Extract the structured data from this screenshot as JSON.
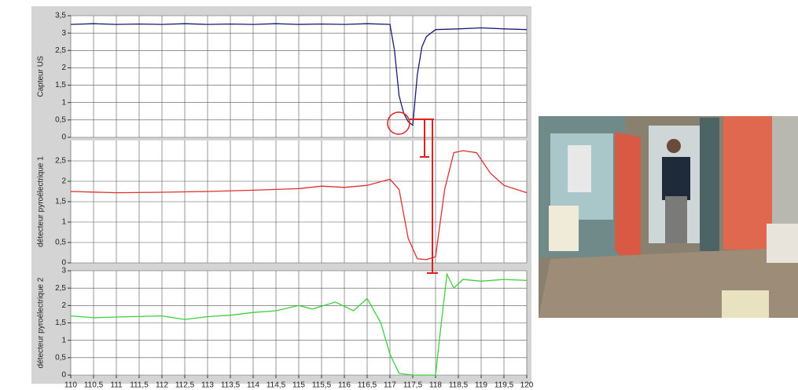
{
  "chart_data": [
    {
      "type": "line",
      "ylabel": "Capteur US",
      "x": [
        110,
        110.5,
        111,
        111.5,
        112,
        112.5,
        113,
        113.5,
        114,
        114.5,
        115,
        115.5,
        116,
        116.5,
        117,
        117.1,
        117.2,
        117.3,
        117.4,
        117.5,
        117.6,
        117.7,
        117.8,
        118,
        118.5,
        119,
        119.5,
        120
      ],
      "series": [
        {
          "color": "#1a1a78",
          "values": [
            3.25,
            3.27,
            3.25,
            3.26,
            3.25,
            3.27,
            3.25,
            3.26,
            3.25,
            3.27,
            3.25,
            3.26,
            3.25,
            3.27,
            3.25,
            2.5,
            1.2,
            0.7,
            0.45,
            0.35,
            1.8,
            2.6,
            2.9,
            3.1,
            3.12,
            3.15,
            3.12,
            3.1
          ]
        }
      ],
      "xlim": [
        110,
        120
      ],
      "ylim": [
        0,
        3.5
      ],
      "yticks": [
        0,
        {
          "value": 0.5,
          "label": "0,5"
        },
        1,
        {
          "value": 1.5,
          "label": "1,5"
        },
        2,
        {
          "value": 2.5,
          "label": "2,5"
        },
        3,
        {
          "value": 3.5,
          "label": "3,5"
        }
      ],
      "grid": true
    },
    {
      "type": "line",
      "ylabel": "détecteur pyroélectrique 1",
      "x": [
        110,
        111,
        112,
        113,
        114,
        114.5,
        115,
        115.5,
        116,
        116.5,
        117,
        117.2,
        117.4,
        117.6,
        117.8,
        118,
        118.2,
        118.4,
        118.6,
        118.9,
        119.2,
        119.5,
        120
      ],
      "series": [
        {
          "color": "#e03030",
          "values": [
            1.75,
            1.72,
            1.73,
            1.75,
            1.78,
            1.8,
            1.82,
            1.88,
            1.85,
            1.9,
            2.05,
            1.8,
            0.6,
            0.1,
            0.08,
            0.15,
            1.8,
            2.7,
            2.75,
            2.7,
            2.2,
            1.9,
            1.72
          ]
        }
      ],
      "xlim": [
        110,
        120
      ],
      "ylim": [
        0,
        3
      ],
      "yticks": [
        0,
        {
          "value": 0.5,
          "label": "0,5"
        },
        1,
        {
          "value": 1.5,
          "label": "1,5"
        },
        2,
        {
          "value": 2.5,
          "label": "2,5"
        }
      ],
      "grid": true
    },
    {
      "type": "line",
      "ylabel": "détecteur pyroélectrique 2",
      "x": [
        110,
        110.5,
        111,
        112,
        112.5,
        113,
        113.5,
        114,
        114.5,
        115,
        115.3,
        115.8,
        116.2,
        116.5,
        116.8,
        117,
        117.2,
        117.5,
        118,
        118.1,
        118.25,
        118.4,
        118.6,
        119,
        119.5,
        120
      ],
      "series": [
        {
          "color": "#3cd03c",
          "values": [
            1.7,
            1.65,
            1.67,
            1.7,
            1.6,
            1.68,
            1.72,
            1.8,
            1.85,
            2.0,
            1.9,
            2.1,
            1.85,
            2.2,
            1.5,
            0.6,
            0.05,
            0,
            0,
            1.2,
            2.9,
            2.5,
            2.75,
            2.7,
            2.75,
            2.72
          ]
        }
      ],
      "xlim": [
        110,
        120
      ],
      "ylim": [
        0,
        3
      ],
      "yticks": [
        0,
        {
          "value": 0.5,
          "label": "0,5"
        },
        1,
        {
          "value": 1.5,
          "label": "1,5"
        },
        2,
        {
          "value": 2.5,
          "label": "2,5"
        },
        3
      ],
      "grid": true,
      "xticks": [
        110,
        {
          "value": 110.5,
          "label": "110,5"
        },
        111,
        {
          "value": 111.5,
          "label": "111,5"
        },
        112,
        {
          "value": 112.5,
          "label": "112,5"
        },
        113,
        {
          "value": 113.5,
          "label": "113,5"
        },
        114,
        {
          "value": 114.5,
          "label": "114,5"
        },
        115,
        {
          "value": 115.5,
          "label": "115,5"
        },
        116,
        {
          "value": 116.5,
          "label": "116,5"
        },
        117,
        {
          "value": 117.5,
          "label": "117,5"
        },
        118,
        {
          "value": 118.5,
          "label": "118,5"
        },
        119,
        {
          "value": 119.5,
          "label": "119,5"
        },
        120
      ]
    }
  ]
}
